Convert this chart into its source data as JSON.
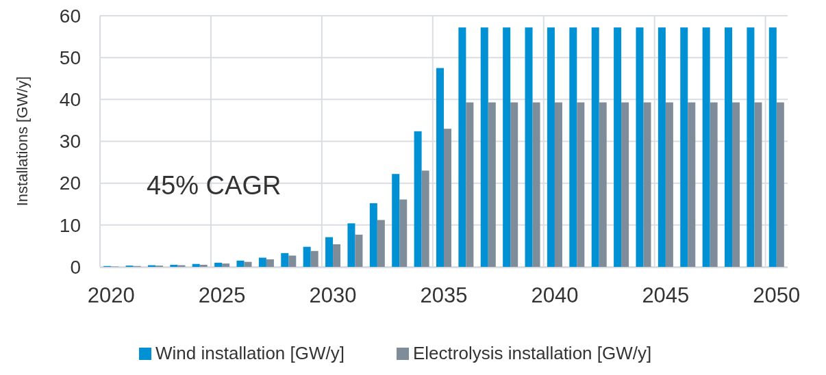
{
  "chart_data": {
    "type": "bar",
    "ylabel": "Installations [GW/y]",
    "categories": [
      "2020",
      null,
      null,
      null,
      null,
      "2025",
      null,
      null,
      null,
      null,
      "2030",
      null,
      null,
      null,
      null,
      "2035",
      null,
      null,
      null,
      null,
      "2040",
      null,
      null,
      null,
      null,
      "2045",
      null,
      null,
      null,
      null,
      "2050"
    ],
    "series": [
      {
        "name": "Wind installation [GW/y]",
        "color": "#0091d5",
        "values": [
          0.2,
          0.3,
          0.4,
          0.5,
          0.7,
          1.0,
          1.5,
          2.2,
          3.3,
          4.8,
          7.1,
          10.4,
          15.2,
          22.2,
          32.4,
          47.5,
          57.2,
          57.2,
          57.2,
          57.2,
          57.2,
          57.2,
          57.2,
          57.2,
          57.2,
          57.2,
          57.2,
          57.2,
          57.2,
          57.2,
          57.2
        ]
      },
      {
        "name": "Electrolysis installation [GW/y]",
        "color": "#7f8c99",
        "values": [
          0.1,
          0.2,
          0.3,
          0.4,
          0.5,
          0.8,
          1.2,
          1.8,
          2.7,
          3.8,
          5.4,
          7.7,
          11.2,
          16.1,
          23.0,
          33.0,
          39.3,
          39.3,
          39.3,
          39.3,
          39.3,
          39.3,
          39.3,
          39.3,
          39.3,
          39.3,
          39.3,
          39.3,
          39.3,
          39.3,
          39.3
        ]
      }
    ],
    "ylim": [
      0,
      60
    ],
    "yticks": [
      0,
      10,
      20,
      30,
      40,
      50,
      60
    ],
    "grid": true,
    "legend": "bottom",
    "annotations": [
      "45% CAGR"
    ]
  }
}
